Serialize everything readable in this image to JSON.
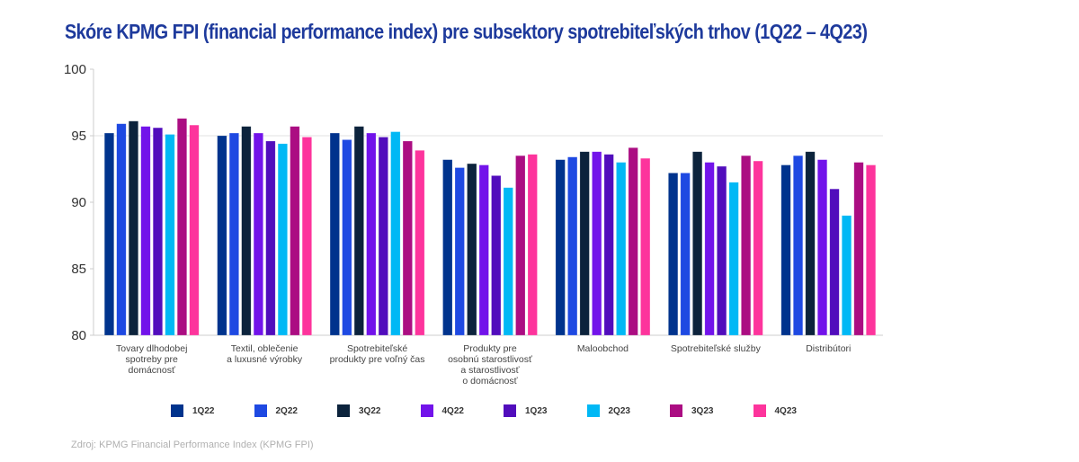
{
  "title": "Skóre KPMG FPI (financial performance index) pre subsektory spotrebiteľských trhov (1Q22 – 4Q23)",
  "source": "Zdroj: KPMG Financial Performance Index (KPMG FPI)",
  "chart_data": {
    "type": "bar",
    "title": "Skóre KPMG FPI (financial performance index) pre subsektory spotrebiteľských trhov (1Q22 – 4Q23)",
    "xlabel": "",
    "ylabel": "",
    "ylim": [
      80,
      100
    ],
    "yticks": [
      80,
      85,
      90,
      95,
      100
    ],
    "grid": "horizontal line at 95",
    "legend_position": "bottom",
    "categories": [
      [
        "Tovary dlhodobej",
        "spotreby pre",
        "domácnosť"
      ],
      [
        "Textil, oblečenie",
        "a luxusné výrobky"
      ],
      [
        "Spotrebiteľské",
        "produkty pre voľný čas"
      ],
      [
        "Produkty pre",
        "osobnú starostlivosť",
        "a starostlivosť",
        "o domácnosť"
      ],
      [
        "Maloobchod"
      ],
      [
        "Spotrebiteľské služby"
      ],
      [
        "Distribútori"
      ]
    ],
    "series": [
      {
        "name": "1Q22",
        "color": "#00338D",
        "values": [
          95.2,
          95.0,
          95.2,
          93.2,
          93.2,
          92.2,
          92.8
        ]
      },
      {
        "name": "2Q22",
        "color": "#1E49E2",
        "values": [
          95.9,
          95.2,
          94.7,
          92.6,
          93.4,
          92.2,
          93.5
        ]
      },
      {
        "name": "3Q22",
        "color": "#0C233C",
        "values": [
          96.1,
          95.7,
          95.7,
          92.9,
          93.8,
          93.8,
          93.8
        ]
      },
      {
        "name": "4Q22",
        "color": "#7213EA",
        "values": [
          95.7,
          95.2,
          95.2,
          92.8,
          93.8,
          93.0,
          93.2
        ]
      },
      {
        "name": "1Q23",
        "color": "#510DBC",
        "values": [
          95.6,
          94.6,
          94.9,
          92.0,
          93.6,
          92.7,
          91.0
        ]
      },
      {
        "name": "2Q23",
        "color": "#00B8F5",
        "values": [
          95.1,
          94.4,
          95.3,
          91.1,
          93.0,
          91.5,
          89.0
        ]
      },
      {
        "name": "3Q23",
        "color": "#AB0D82",
        "values": [
          96.3,
          95.7,
          94.6,
          93.5,
          94.1,
          93.5,
          93.0
        ]
      },
      {
        "name": "4Q23",
        "color": "#FD349C",
        "values": [
          95.8,
          94.9,
          93.9,
          93.6,
          93.3,
          93.1,
          92.8
        ]
      }
    ]
  }
}
